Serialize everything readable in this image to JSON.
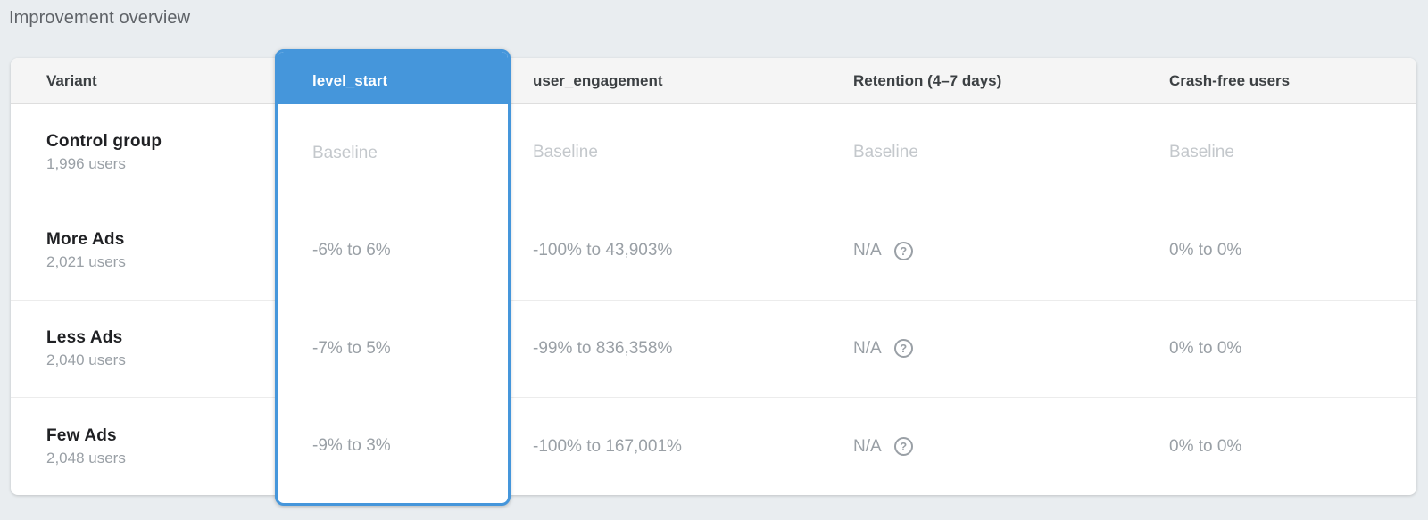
{
  "page": {
    "title": "Improvement overview"
  },
  "colors": {
    "selected_metric_blue": "#4596db",
    "page_background": "#e9edf0",
    "baseline_text": "#c4c8cc",
    "value_text": "#9aa0a6"
  },
  "icons": {
    "retention_help": "help-circle-icon",
    "help_glyph": "?"
  },
  "table": {
    "columns": {
      "variant": "Variant",
      "level_start": "level_start",
      "user_engagement": "user_engagement",
      "retention": "Retention (4–7 days)",
      "crash_free": "Crash-free users"
    },
    "selected_column": "level_start",
    "rows": [
      {
        "variant": "Control group",
        "users": "1,996 users",
        "level_start": "Baseline",
        "user_engagement": "Baseline",
        "retention": "Baseline",
        "crash_free": "Baseline"
      },
      {
        "variant": "More Ads",
        "users": "2,021 users",
        "level_start": "-6% to 6%",
        "user_engagement": "-100% to 43,903%",
        "retention": "N/A",
        "crash_free": "0% to 0%"
      },
      {
        "variant": "Less Ads",
        "users": "2,040 users",
        "level_start": "-7% to 5%",
        "user_engagement": "-99% to 836,358%",
        "retention": "N/A",
        "crash_free": "0% to 0%"
      },
      {
        "variant": "Few Ads",
        "users": "2,048 users",
        "level_start": "-9% to 3%",
        "user_engagement": "-100% to 167,001%",
        "retention": "N/A",
        "crash_free": "0% to 0%"
      }
    ]
  }
}
